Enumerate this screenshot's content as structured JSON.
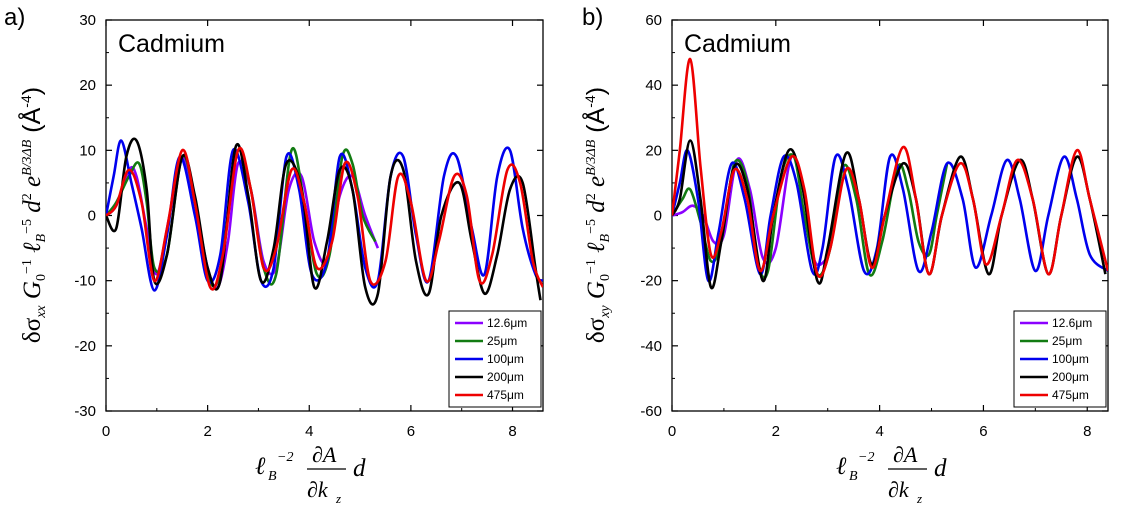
{
  "chart_data": [
    {
      "type": "line",
      "panel_label": "a)",
      "annotation": "Cadmium",
      "ylabel": "δσ_xx G_0^-1 ℓ_B^-5 d^2 e^(B/3ΔB) (Å^-4)",
      "xlabel": "ℓ_B^-2 (∂A/∂k_z) d",
      "xlim": [
        0,
        8.6
      ],
      "ylim": [
        -30,
        30
      ],
      "xticks": [
        0,
        2,
        4,
        6,
        8
      ],
      "yticks": [
        -30,
        -20,
        -10,
        0,
        10,
        20,
        30
      ],
      "legend_position": "bottom-right",
      "series": [
        {
          "name": "12.6μm",
          "color": "#8b00ff",
          "x": [
            0,
            0.2,
            0.45,
            0.6,
            0.8,
            1.0,
            1.25,
            1.5,
            1.75,
            2.0,
            2.2,
            2.4,
            2.6,
            2.85,
            3.1,
            3.35,
            3.6,
            3.85,
            4.1,
            4.35,
            4.6,
            4.85,
            5.1,
            5.35
          ],
          "y": [
            0,
            1.5,
            7,
            6,
            -2,
            -9,
            0,
            9,
            2,
            -8,
            -11,
            -4,
            8,
            4,
            -7,
            -8,
            4,
            6,
            -4,
            -7,
            3,
            6,
            0,
            -5
          ]
        },
        {
          "name": "25μm",
          "color": "#127b12",
          "x": [
            0,
            0.2,
            0.45,
            0.65,
            0.8,
            0.95,
            1.2,
            1.5,
            1.75,
            2.0,
            2.2,
            2.4,
            2.6,
            2.85,
            3.1,
            3.35,
            3.65,
            3.9,
            4.15,
            4.4,
            4.65,
            4.85,
            5.05,
            5.3
          ],
          "y": [
            0,
            2,
            6,
            8,
            2,
            -8,
            -6,
            9,
            2,
            -9,
            -10,
            0,
            10,
            4,
            -8,
            -9,
            10,
            2,
            -9,
            -6,
            9,
            8,
            0,
            -4
          ]
        },
        {
          "name": "100μm",
          "color": "#0000ee",
          "x": [
            0,
            0.15,
            0.3,
            0.5,
            0.7,
            0.95,
            1.2,
            1.45,
            1.75,
            2.0,
            2.25,
            2.5,
            2.8,
            3.05,
            3.3,
            3.55,
            3.8,
            4.05,
            4.35,
            4.6,
            4.85,
            5.1,
            5.35,
            5.6,
            5.85,
            6.1,
            6.35,
            6.65,
            6.9,
            7.2,
            7.45,
            7.7,
            7.95,
            8.2,
            8.45,
            8.6
          ],
          "y": [
            0,
            6,
            11.5,
            5,
            -2,
            -11.5,
            -3,
            9,
            0,
            -10,
            -6,
            10,
            2,
            -10,
            -8,
            9,
            4,
            -9,
            -7,
            9,
            4,
            -8,
            -10,
            6,
            9,
            -3,
            -10,
            6,
            9,
            -2,
            -9,
            6,
            10,
            -2,
            -9,
            -10
          ]
        },
        {
          "name": "200μm",
          "color": "#000000",
          "x": [
            0,
            0.2,
            0.4,
            0.6,
            0.8,
            0.95,
            1.2,
            1.5,
            1.75,
            2.0,
            2.25,
            2.55,
            2.8,
            3.05,
            3.3,
            3.55,
            3.85,
            4.1,
            4.35,
            4.6,
            4.85,
            5.1,
            5.35,
            5.6,
            5.85,
            6.1,
            6.35,
            6.6,
            6.95,
            7.2,
            7.45,
            7.7,
            7.95,
            8.2,
            8.45,
            8.55
          ],
          "y": [
            0,
            -2,
            9,
            11.5,
            4,
            -10,
            -6,
            9,
            3,
            -8,
            -10,
            10.5,
            3,
            -10,
            -5,
            8,
            4,
            -11,
            -4,
            7,
            4,
            -11,
            -12,
            6,
            7,
            -7,
            -12,
            0,
            5,
            -4,
            -12,
            -6,
            4,
            5,
            -8,
            -13
          ]
        },
        {
          "name": "475μm",
          "color": "#ee0000",
          "x": [
            0,
            0.2,
            0.45,
            0.7,
            0.95,
            1.2,
            1.5,
            1.75,
            2.05,
            2.3,
            2.6,
            2.85,
            3.1,
            3.35,
            3.65,
            3.9,
            4.15,
            4.45,
            4.7,
            4.95,
            5.2,
            5.5,
            5.75,
            6.0,
            6.3,
            6.55,
            6.85,
            7.1,
            7.35,
            7.6,
            7.9,
            8.15,
            8.4,
            8.6
          ],
          "y": [
            0,
            1.5,
            7,
            2,
            -10,
            -2,
            10,
            2,
            -11,
            -6,
            10,
            4,
            -8,
            -5,
            7,
            2,
            -8,
            -4,
            8,
            3,
            -10,
            -7,
            6,
            2,
            -10,
            -4,
            6,
            3,
            -10,
            -6,
            7,
            5,
            -7,
            -11
          ]
        }
      ]
    },
    {
      "type": "line",
      "panel_label": "b)",
      "annotation": "Cadmium",
      "ylabel": "δσ_xy G_0^-1 ℓ_B^-5 d^2 e^(B/3ΔB) (Å^-4)",
      "xlabel": "ℓ_B^-2 (∂A/∂k_z) d",
      "xlim": [
        0,
        8.4
      ],
      "ylim": [
        -60,
        60
      ],
      "xticks": [
        0,
        2,
        4,
        6,
        8
      ],
      "yticks": [
        -60,
        -40,
        -20,
        0,
        20,
        40,
        60
      ],
      "legend_position": "bottom-right",
      "series": [
        {
          "name": "12.6μm",
          "color": "#8b00ff",
          "x": [
            0,
            0.2,
            0.4,
            0.6,
            0.8,
            1.0,
            1.25,
            1.5,
            1.75,
            2.0,
            2.3,
            2.55,
            2.75,
            3.0
          ],
          "y": [
            0,
            1,
            3,
            0,
            -8,
            -6,
            17,
            8,
            -13,
            -10,
            18,
            6,
            -14,
            -13
          ]
        },
        {
          "name": "25μm",
          "color": "#127b12",
          "x": [
            0,
            0.2,
            0.35,
            0.55,
            0.75,
            0.95,
            1.2,
            1.45,
            1.65,
            1.85,
            2.1,
            2.35,
            2.55,
            2.8,
            3.05,
            3.3,
            3.55,
            3.8,
            4.05,
            4.35,
            4.55,
            4.75,
            4.95,
            5.1,
            5.3
          ],
          "y": [
            0,
            5,
            8,
            -2,
            -14,
            -8,
            16,
            10,
            -14,
            -17,
            12,
            18,
            0,
            -18,
            -10,
            15,
            5,
            -18,
            -8,
            15,
            8,
            -8,
            -12,
            0,
            16
          ]
        },
        {
          "name": "100μm",
          "color": "#0000ee",
          "x": [
            0,
            0.15,
            0.3,
            0.5,
            0.7,
            0.9,
            1.15,
            1.4,
            1.7,
            1.9,
            2.15,
            2.4,
            2.7,
            2.9,
            3.15,
            3.4,
            3.7,
            3.95,
            4.2,
            4.45,
            4.75,
            5.0,
            5.3,
            5.6,
            5.85,
            6.15,
            6.45,
            6.7,
            7.0,
            7.25,
            7.55,
            7.8,
            8.05,
            8.4
          ],
          "y": [
            0,
            10,
            20,
            5,
            -20,
            -5,
            16,
            5,
            -18,
            0,
            18,
            10,
            -17,
            -10,
            18,
            8,
            -17,
            -10,
            18,
            8,
            -17,
            -5,
            16,
            5,
            -16,
            0,
            17,
            5,
            -17,
            0,
            18,
            5,
            -12,
            -17
          ]
        },
        {
          "name": "200μm",
          "color": "#000000",
          "x": [
            0,
            0.15,
            0.35,
            0.55,
            0.75,
            0.95,
            1.2,
            1.45,
            1.75,
            1.95,
            2.25,
            2.5,
            2.8,
            3.0,
            3.35,
            3.6,
            3.85,
            4.1,
            4.45,
            4.7,
            4.95,
            5.2,
            5.55,
            5.8,
            6.1,
            6.35,
            6.7,
            6.95,
            7.25,
            7.5,
            7.8,
            8.05,
            8.35
          ],
          "y": [
            0,
            5,
            23,
            5,
            -22,
            -8,
            15,
            8,
            -20,
            0,
            20,
            10,
            -20,
            -10,
            19,
            5,
            -15,
            0,
            16,
            5,
            -18,
            0,
            18,
            5,
            -18,
            0,
            17,
            5,
            -18,
            0,
            18,
            5,
            -18
          ]
        },
        {
          "name": "475μm",
          "color": "#ee0000",
          "x": [
            0,
            0.15,
            0.35,
            0.55,
            0.75,
            0.95,
            1.2,
            1.45,
            1.7,
            1.95,
            2.3,
            2.55,
            2.8,
            3.05,
            3.35,
            3.6,
            3.85,
            4.1,
            4.45,
            4.7,
            4.95,
            5.2,
            5.55,
            5.8,
            6.05,
            6.35,
            6.65,
            6.95,
            7.25,
            7.5,
            7.8,
            8.05,
            8.4
          ],
          "y": [
            0,
            20,
            48,
            15,
            -12,
            -5,
            14,
            5,
            -17,
            0,
            18,
            8,
            -18,
            -10,
            14,
            5,
            -16,
            0,
            21,
            5,
            -18,
            0,
            16,
            5,
            -15,
            0,
            17,
            5,
            -18,
            0,
            20,
            5,
            -17
          ]
        }
      ]
    }
  ]
}
